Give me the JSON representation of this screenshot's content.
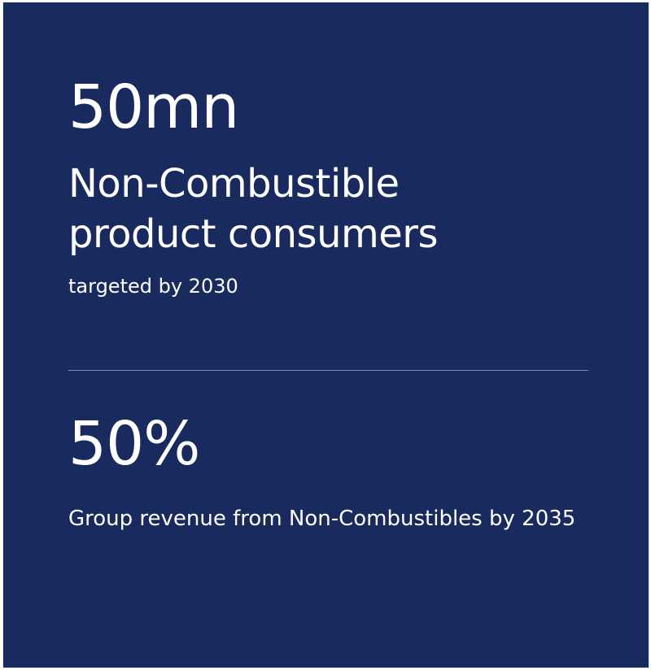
{
  "stats": {
    "first": {
      "value": "50mn",
      "headline_line1": "Non-Combustible",
      "headline_line2": "product consumers",
      "caption": "targeted by 2030"
    },
    "second": {
      "value": "50%",
      "caption": "Group revenue from Non-Combustibles by 2035"
    }
  },
  "colors": {
    "background": "#182a5e",
    "text": "#ffffff",
    "divider": "#7f8ab0"
  }
}
